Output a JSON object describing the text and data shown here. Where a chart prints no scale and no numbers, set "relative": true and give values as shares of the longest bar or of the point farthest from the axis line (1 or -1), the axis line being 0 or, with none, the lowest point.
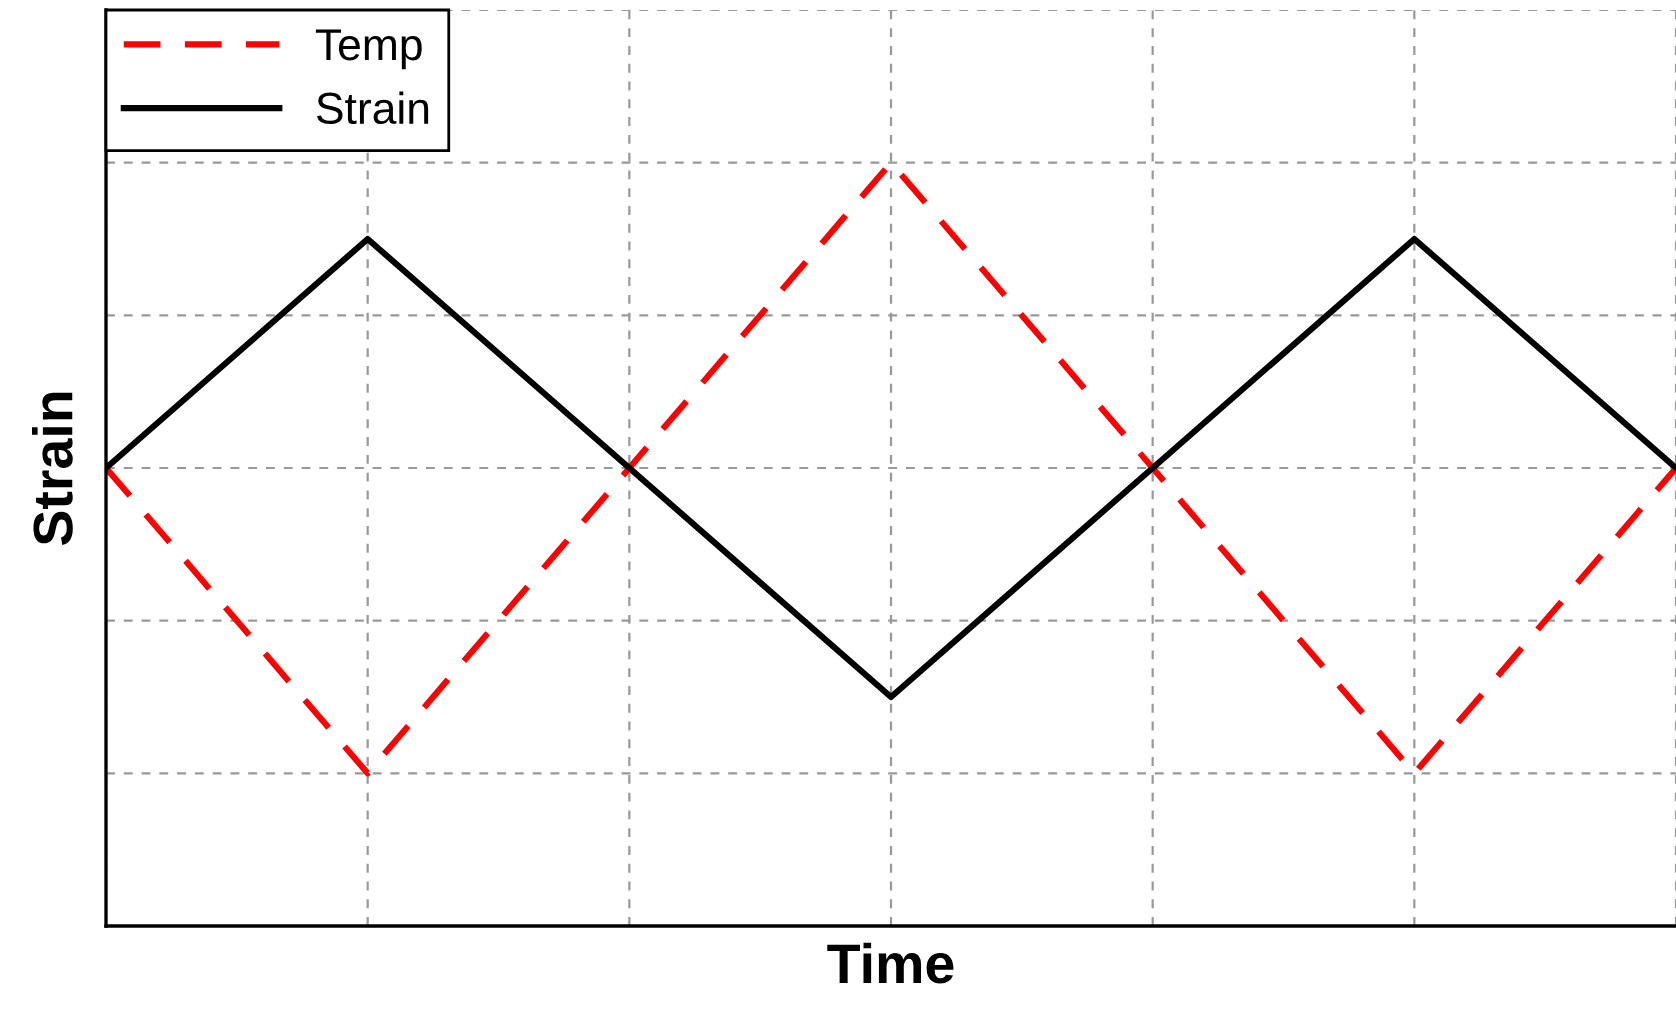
{
  "chart_data": {
    "type": "line",
    "xlabel": "Time",
    "ylabel": "Strain",
    "relative": true,
    "categories": [
      null,
      null,
      null,
      null,
      null,
      null,
      null
    ],
    "series": [
      {
        "name": "Temp",
        "color": "#ff0000",
        "line_style": "dashed",
        "values": [
          0.6,
          0.2,
          0.6,
          1.0,
          0.6,
          0.2,
          0.6
        ]
      },
      {
        "name": "Strain",
        "color": "#000000",
        "line_style": "solid",
        "values": [
          0.6,
          0.9,
          0.6,
          0.3,
          0.6,
          0.9,
          0.6
        ]
      }
    ],
    "grid": true,
    "legend": "top left",
    "marker": "none",
    "tick_labels": false
  }
}
